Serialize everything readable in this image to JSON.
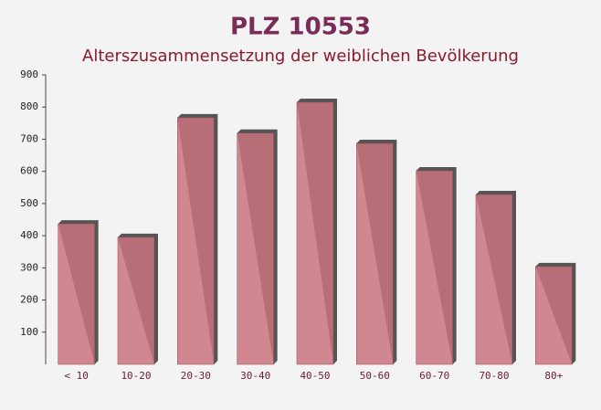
{
  "chart_data": {
    "type": "bar",
    "title": "PLZ 10553",
    "subtitle": "Alterszusammensetzung der weiblichen Bevölkerung",
    "categories": [
      "< 10",
      "10-20",
      "20-30",
      "30-40",
      "40-50",
      "50-60",
      "60-70",
      "70-80",
      "80+"
    ],
    "values": [
      437,
      395,
      767,
      719,
      815,
      687,
      602,
      528,
      304
    ],
    "color": "#c9737c",
    "ylim": [
      0,
      900
    ],
    "yticks": [
      100,
      200,
      300,
      400,
      500,
      600,
      700,
      800,
      900
    ],
    "grid": false
  }
}
